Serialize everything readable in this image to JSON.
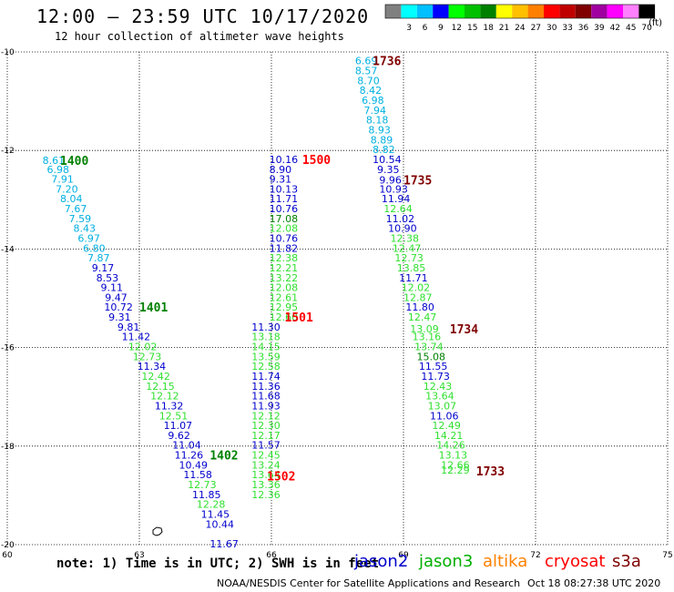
{
  "header": {
    "title": "12:00 – 23:59 UTC 10/17/2020",
    "subtitle": "12 hour collection of altimeter wave heights"
  },
  "legend": {
    "unit": "(ft)",
    "bins": [
      {
        "label": "",
        "color": "#808080"
      },
      {
        "label": "3",
        "color": "#00ffff"
      },
      {
        "label": "6",
        "color": "#00c0ff"
      },
      {
        "label": "9",
        "color": "#0000ff"
      },
      {
        "label": "12",
        "color": "#00ff00"
      },
      {
        "label": "15",
        "color": "#00c000"
      },
      {
        "label": "18",
        "color": "#008000"
      },
      {
        "label": "21",
        "color": "#ffff00"
      },
      {
        "label": "24",
        "color": "#ffc000"
      },
      {
        "label": "27",
        "color": "#ff8000"
      },
      {
        "label": "30",
        "color": "#ff0000"
      },
      {
        "label": "33",
        "color": "#c00000"
      },
      {
        "label": "36",
        "color": "#800000"
      },
      {
        "label": "39",
        "color": "#a000a0"
      },
      {
        "label": "42",
        "color": "#ff00ff"
      },
      {
        "label": "45",
        "color": "#ff80ff"
      },
      {
        "label": "70",
        "color": "#000000"
      }
    ]
  },
  "axes": {
    "lon_ticks": [
      "60",
      "63",
      "66",
      "69",
      "72",
      "75"
    ],
    "lat_ticks": [
      "-10",
      "-12",
      "-14",
      "-16",
      "-18",
      "-20"
    ],
    "lon_range": [
      60,
      75
    ],
    "lat_range": [
      -10,
      -20
    ]
  },
  "colors": {
    "cyan": "#00b0e0",
    "blue": "#0000cc",
    "green": "#30e030",
    "darkgreen": "#008000",
    "red": "#ff0000",
    "darkred": "#800000"
  },
  "tracks": [
    {
      "time": "1400",
      "time_color": "darkgreen",
      "time_pos": [
        61.2,
        -12.2
      ],
      "points": [
        {
          "v": "8.61",
          "c": "cyan",
          "lon": 60.8,
          "lat": -12.2
        },
        {
          "v": "6.98",
          "c": "cyan",
          "lon": 60.9,
          "lat": -12.38
        },
        {
          "v": "7.91",
          "c": "cyan",
          "lon": 61.0,
          "lat": -12.58
        },
        {
          "v": "7.20",
          "c": "cyan",
          "lon": 61.1,
          "lat": -12.78
        },
        {
          "v": "8.04",
          "c": "cyan",
          "lon": 61.2,
          "lat": -12.98
        },
        {
          "v": "7.67",
          "c": "cyan",
          "lon": 61.3,
          "lat": -13.18
        },
        {
          "v": "7.59",
          "c": "cyan",
          "lon": 61.4,
          "lat": -13.38
        },
        {
          "v": "8.43",
          "c": "cyan",
          "lon": 61.5,
          "lat": -13.58
        },
        {
          "v": "6.97",
          "c": "cyan",
          "lon": 61.6,
          "lat": -13.78
        },
        {
          "v": "6.80",
          "c": "cyan",
          "lon": 61.72,
          "lat": -13.98
        },
        {
          "v": "7.87",
          "c": "cyan",
          "lon": 61.82,
          "lat": -14.18
        },
        {
          "v": "9.17",
          "c": "blue",
          "lon": 61.92,
          "lat": -14.38
        },
        {
          "v": "8.53",
          "c": "blue",
          "lon": 62.02,
          "lat": -14.58
        },
        {
          "v": "9.11",
          "c": "blue",
          "lon": 62.12,
          "lat": -14.78
        },
        {
          "v": "9.47",
          "c": "blue",
          "lon": 62.22,
          "lat": -14.98
        },
        {
          "v": "10.72",
          "c": "blue",
          "lon": 62.2,
          "lat": -15.18
        },
        {
          "v": "9.31",
          "c": "blue",
          "lon": 62.3,
          "lat": -15.38
        },
        {
          "v": "9.81",
          "c": "blue",
          "lon": 62.5,
          "lat": -15.58
        },
        {
          "v": "11.42",
          "c": "blue",
          "lon": 62.6,
          "lat": -15.78
        }
      ]
    },
    {
      "time": "1401",
      "time_color": "darkgreen",
      "time_pos": [
        63.0,
        -15.18
      ],
      "points": [
        {
          "v": "12.02",
          "c": "green",
          "lon": 62.75,
          "lat": -15.98
        },
        {
          "v": "12.73",
          "c": "green",
          "lon": 62.85,
          "lat": -16.18
        },
        {
          "v": "11.34",
          "c": "blue",
          "lon": 62.95,
          "lat": -16.38
        },
        {
          "v": "12.42",
          "c": "green",
          "lon": 63.05,
          "lat": -16.58
        },
        {
          "v": "12.15",
          "c": "green",
          "lon": 63.15,
          "lat": -16.78
        },
        {
          "v": "12.12",
          "c": "green",
          "lon": 63.25,
          "lat": -16.98
        },
        {
          "v": "11.32",
          "c": "blue",
          "lon": 63.35,
          "lat": -17.18
        },
        {
          "v": "12.51",
          "c": "green",
          "lon": 63.45,
          "lat": -17.38
        },
        {
          "v": "11.07",
          "c": "blue",
          "lon": 63.55,
          "lat": -17.58
        },
        {
          "v": "9.62",
          "c": "blue",
          "lon": 63.65,
          "lat": -17.78
        },
        {
          "v": "11.04",
          "c": "blue",
          "lon": 63.75,
          "lat": -17.98
        }
      ]
    },
    {
      "time": "1402",
      "time_color": "darkgreen",
      "time_pos": [
        64.6,
        -18.18
      ],
      "points": [
        {
          "v": "11.26",
          "c": "blue",
          "lon": 63.8,
          "lat": -18.18
        },
        {
          "v": "10.49",
          "c": "blue",
          "lon": 63.9,
          "lat": -18.38
        },
        {
          "v": "11.58",
          "c": "blue",
          "lon": 64.0,
          "lat": -18.58
        },
        {
          "v": "12.73",
          "c": "green",
          "lon": 64.1,
          "lat": -18.78
        },
        {
          "v": "11.85",
          "c": "blue",
          "lon": 64.2,
          "lat": -18.98
        },
        {
          "v": "12.28",
          "c": "green",
          "lon": 64.3,
          "lat": -19.18
        },
        {
          "v": "11.45",
          "c": "blue",
          "lon": 64.4,
          "lat": -19.38
        },
        {
          "v": "10.44",
          "c": "blue",
          "lon": 64.5,
          "lat": -19.58
        },
        {
          "v": "11.67",
          "c": "blue",
          "lon": 64.6,
          "lat": -19.98
        }
      ]
    },
    {
      "time": "1500",
      "time_color": "red",
      "time_pos": [
        66.7,
        -12.18
      ],
      "points": [
        {
          "v": "10.16",
          "c": "blue",
          "lon": 65.95,
          "lat": -12.18
        },
        {
          "v": "8.90",
          "c": "blue",
          "lon": 65.95,
          "lat": -12.38
        },
        {
          "v": "9.31",
          "c": "blue",
          "lon": 65.95,
          "lat": -12.58
        },
        {
          "v": "10.13",
          "c": "blue",
          "lon": 65.95,
          "lat": -12.78
        },
        {
          "v": "11.71",
          "c": "blue",
          "lon": 65.95,
          "lat": -12.98
        },
        {
          "v": "10.76",
          "c": "blue",
          "lon": 65.95,
          "lat": -13.18
        },
        {
          "v": "17.08",
          "c": "darkgreen",
          "lon": 65.95,
          "lat": -13.38
        },
        {
          "v": "12.08",
          "c": "green",
          "lon": 65.95,
          "lat": -13.58
        },
        {
          "v": "10.76",
          "c": "blue",
          "lon": 65.95,
          "lat": -13.78
        },
        {
          "v": "11.82",
          "c": "blue",
          "lon": 65.95,
          "lat": -13.98
        },
        {
          "v": "12.38",
          "c": "green",
          "lon": 65.95,
          "lat": -14.18
        },
        {
          "v": "12.21",
          "c": "green",
          "lon": 65.95,
          "lat": -14.38
        },
        {
          "v": "13.22",
          "c": "green",
          "lon": 65.95,
          "lat": -14.58
        },
        {
          "v": "12.08",
          "c": "green",
          "lon": 65.95,
          "lat": -14.78
        },
        {
          "v": "12.61",
          "c": "green",
          "lon": 65.95,
          "lat": -14.98
        },
        {
          "v": "12.95",
          "c": "green",
          "lon": 65.95,
          "lat": -15.18
        },
        {
          "v": "12.60",
          "c": "green",
          "lon": 65.95,
          "lat": -15.38
        }
      ]
    },
    {
      "time": "1501",
      "time_color": "red",
      "time_pos": [
        66.3,
        -15.38
      ],
      "points": [
        {
          "v": "11.30",
          "c": "blue",
          "lon": 65.55,
          "lat": -15.58
        },
        {
          "v": "13.18",
          "c": "green",
          "lon": 65.55,
          "lat": -15.78
        },
        {
          "v": "14.15",
          "c": "green",
          "lon": 65.55,
          "lat": -15.98
        },
        {
          "v": "13.59",
          "c": "green",
          "lon": 65.55,
          "lat": -16.18
        },
        {
          "v": "12.58",
          "c": "green",
          "lon": 65.55,
          "lat": -16.38
        },
        {
          "v": "11.74",
          "c": "blue",
          "lon": 65.55,
          "lat": -16.58
        },
        {
          "v": "11.36",
          "c": "blue",
          "lon": 65.55,
          "lat": -16.78
        },
        {
          "v": "11.68",
          "c": "blue",
          "lon": 65.55,
          "lat": -16.98
        },
        {
          "v": "11.93",
          "c": "blue",
          "lon": 65.55,
          "lat": -17.18
        },
        {
          "v": "12.12",
          "c": "green",
          "lon": 65.55,
          "lat": -17.38
        },
        {
          "v": "12.30",
          "c": "green",
          "lon": 65.55,
          "lat": -17.58
        },
        {
          "v": "12.17",
          "c": "green",
          "lon": 65.55,
          "lat": -17.78
        },
        {
          "v": "11.57",
          "c": "blue",
          "lon": 65.55,
          "lat": -17.98
        },
        {
          "v": "12.45",
          "c": "green",
          "lon": 65.55,
          "lat": -18.18
        },
        {
          "v": "13.24",
          "c": "green",
          "lon": 65.55,
          "lat": -18.38
        },
        {
          "v": "13.64",
          "c": "green",
          "lon": 65.55,
          "lat": -18.58
        }
      ]
    },
    {
      "time": "1502",
      "time_color": "red",
      "time_pos": [
        65.9,
        -18.6
      ],
      "points": [
        {
          "v": "13.36",
          "c": "green",
          "lon": 65.55,
          "lat": -18.78
        },
        {
          "v": "12.36",
          "c": "green",
          "lon": 65.55,
          "lat": -18.98
        }
      ]
    },
    {
      "time": "1736",
      "time_color": "darkred",
      "time_pos": [
        68.3,
        -10.18
      ],
      "points": [
        {
          "v": "6.69",
          "c": "cyan",
          "lon": 67.9,
          "lat": -10.18
        },
        {
          "v": "8.57",
          "c": "cyan",
          "lon": 67.9,
          "lat": -10.38
        },
        {
          "v": "8.70",
          "c": "cyan",
          "lon": 67.95,
          "lat": -10.58
        },
        {
          "v": "8.42",
          "c": "cyan",
          "lon": 68.0,
          "lat": -10.78
        },
        {
          "v": "6.98",
          "c": "cyan",
          "lon": 68.05,
          "lat": -10.98
        },
        {
          "v": "7.94",
          "c": "cyan",
          "lon": 68.1,
          "lat": -11.18
        },
        {
          "v": "8.18",
          "c": "cyan",
          "lon": 68.15,
          "lat": -11.38
        },
        {
          "v": "8.93",
          "c": "cyan",
          "lon": 68.2,
          "lat": -11.58
        },
        {
          "v": "8.89",
          "c": "cyan",
          "lon": 68.25,
          "lat": -11.78
        },
        {
          "v": "8.82",
          "c": "cyan",
          "lon": 68.3,
          "lat": -11.98
        },
        {
          "v": "10.54",
          "c": "blue",
          "lon": 68.3,
          "lat": -12.18
        },
        {
          "v": "9.35",
          "c": "blue",
          "lon": 68.4,
          "lat": -12.38
        }
      ]
    },
    {
      "time": "1735",
      "time_color": "darkred",
      "time_pos": [
        69.0,
        -12.6
      ],
      "points": [
        {
          "v": "9.96",
          "c": "blue",
          "lon": 68.45,
          "lat": -12.6
        },
        {
          "v": "10.93",
          "c": "blue",
          "lon": 68.45,
          "lat": -12.78
        },
        {
          "v": "11.94",
          "c": "blue",
          "lon": 68.5,
          "lat": -12.98
        },
        {
          "v": "12.64",
          "c": "green",
          "lon": 68.55,
          "lat": -13.18
        },
        {
          "v": "11.02",
          "c": "blue",
          "lon": 68.6,
          "lat": -13.38
        },
        {
          "v": "10.90",
          "c": "blue",
          "lon": 68.65,
          "lat": -13.58
        },
        {
          "v": "12.38",
          "c": "green",
          "lon": 68.7,
          "lat": -13.78
        },
        {
          "v": "12.47",
          "c": "green",
          "lon": 68.75,
          "lat": -13.98
        },
        {
          "v": "12.73",
          "c": "green",
          "lon": 68.8,
          "lat": -14.18
        },
        {
          "v": "13.85",
          "c": "green",
          "lon": 68.85,
          "lat": -14.38
        },
        {
          "v": "11.71",
          "c": "blue",
          "lon": 68.9,
          "lat": -14.58
        },
        {
          "v": "12.02",
          "c": "green",
          "lon": 68.95,
          "lat": -14.78
        },
        {
          "v": "12.87",
          "c": "green",
          "lon": 69.0,
          "lat": -14.98
        },
        {
          "v": "11.80",
          "c": "blue",
          "lon": 69.05,
          "lat": -15.18
        },
        {
          "v": "12.47",
          "c": "green",
          "lon": 69.1,
          "lat": -15.38
        }
      ]
    },
    {
      "time": "1734",
      "time_color": "darkred",
      "time_pos": [
        70.05,
        -15.62
      ],
      "points": [
        {
          "v": "13.09",
          "c": "green",
          "lon": 69.15,
          "lat": -15.62
        },
        {
          "v": "13.16",
          "c": "green",
          "lon": 69.2,
          "lat": -15.78
        },
        {
          "v": "13.74",
          "c": "green",
          "lon": 69.25,
          "lat": -15.98
        },
        {
          "v": "15.08",
          "c": "darkgreen",
          "lon": 69.3,
          "lat": -16.18
        },
        {
          "v": "11.55",
          "c": "blue",
          "lon": 69.35,
          "lat": -16.38
        },
        {
          "v": "11.73",
          "c": "blue",
          "lon": 69.4,
          "lat": -16.58
        },
        {
          "v": "12.43",
          "c": "green",
          "lon": 69.45,
          "lat": -16.78
        },
        {
          "v": "13.64",
          "c": "green",
          "lon": 69.5,
          "lat": -16.98
        },
        {
          "v": "13.07",
          "c": "green",
          "lon": 69.55,
          "lat": -17.18
        },
        {
          "v": "11.06",
          "c": "blue",
          "lon": 69.6,
          "lat": -17.38
        },
        {
          "v": "12.49",
          "c": "green",
          "lon": 69.65,
          "lat": -17.58
        },
        {
          "v": "14.21",
          "c": "green",
          "lon": 69.7,
          "lat": -17.78
        },
        {
          "v": "14.26",
          "c": "green",
          "lon": 69.75,
          "lat": -17.98
        },
        {
          "v": "13.13",
          "c": "green",
          "lon": 69.8,
          "lat": -18.18
        },
        {
          "v": "12.66",
          "c": "green",
          "lon": 69.85,
          "lat": -18.38
        }
      ]
    },
    {
      "time": "1733",
      "time_color": "darkred",
      "time_pos": [
        70.65,
        -18.5
      ],
      "points": [
        {
          "v": "12.29",
          "c": "green",
          "lon": 69.85,
          "lat": -18.48
        }
      ]
    }
  ],
  "footer": {
    "note": "note:  1) Time is in UTC; 2) SWH is in feet",
    "satellites": [
      {
        "name": "jason2",
        "color": "#0000cc"
      },
      {
        "name": "jason3",
        "color": "#00b000"
      },
      {
        "name": "altika",
        "color": "#ff8000"
      },
      {
        "name": "cryosat",
        "color": "#ff0000"
      },
      {
        "name": "s3a",
        "color": "#800000"
      }
    ],
    "credit": "NOAA/NESDIS Center for Satellite Applications and Research",
    "timestamp": "Oct 18 08:27:38 UTC 2020"
  }
}
